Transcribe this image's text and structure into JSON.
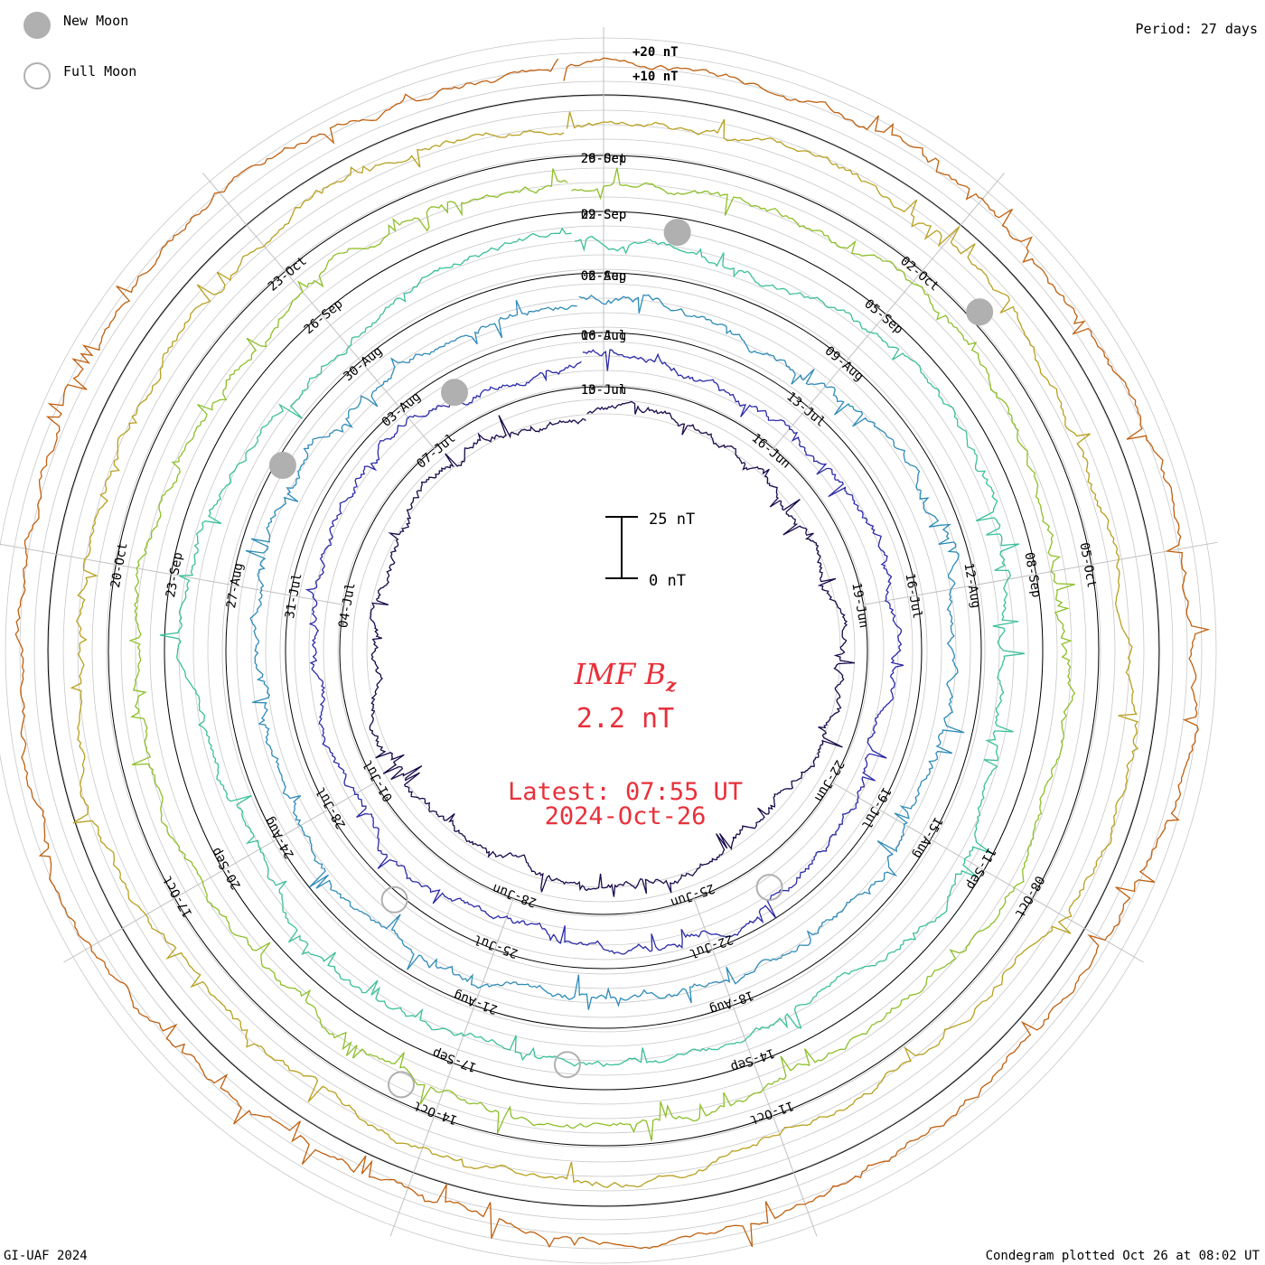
{
  "chart_data": {
    "type": "condegram",
    "title": "IMF B",
    "title_subscript": "z",
    "current_value": "2.2 nT",
    "latest_label": "Latest: 07:55 UT",
    "latest_date": "2024-Oct-26",
    "period_label": "Period: 27 days",
    "footer_left": "GI-UAF 2024",
    "footer_right": "Condegram plotted Oct 26 at 08:02 UT",
    "legend": [
      {
        "name": "New Moon",
        "symbol": "filled-circle",
        "color": "#b0b0b0"
      },
      {
        "name": "Full Moon",
        "symbol": "open-circle",
        "color": "#b0b0b0"
      }
    ],
    "scale_bar": {
      "top_label": "25 nT",
      "bottom_label": "0 nT"
    },
    "ring_scale_labels": [
      "+20 nT",
      "+10 nT"
    ],
    "rotations": [
      {
        "name": "rotation-1",
        "color": "#1a0a4a",
        "date_labels": [
          "13-Jun",
          "16-Jun",
          "19-Jun",
          "22-Jun",
          "25-Jun",
          "28-Jun",
          "01-Jul",
          "04-Jul",
          "07-Jul",
          "10-Jul"
        ]
      },
      {
        "name": "rotation-2",
        "color": "#2b2aa8",
        "date_labels": [
          "10-Jul",
          "13-Jul",
          "16-Jul",
          "19-Jul",
          "22-Jul",
          "25-Jul",
          "28-Jul",
          "31-Jul",
          "03-Aug",
          "06-Aug"
        ]
      },
      {
        "name": "rotation-3",
        "color": "#2f8bb8",
        "date_labels": [
          "06-Aug",
          "09-Aug",
          "12-Aug",
          "15-Aug",
          "18-Aug",
          "21-Aug",
          "24-Aug",
          "27-Aug",
          "30-Aug",
          "02-Sep"
        ]
      },
      {
        "name": "rotation-4",
        "color": "#3bbf9a",
        "date_labels": [
          "02-Sep",
          "05-Sep",
          "08-Sep",
          "11-Sep",
          "14-Sep",
          "17-Sep",
          "20-Sep",
          "23-Sep",
          "26-Sep",
          "29-Sep"
        ]
      },
      {
        "name": "rotation-5",
        "color": "#8dbf2a",
        "date_labels": [
          "29-Sep",
          "02-Oct",
          "05-Oct",
          "08-Oct",
          "11-Oct",
          "14-Oct",
          "17-Oct",
          "20-Oct",
          "23-Oct",
          "26-Oct"
        ]
      },
      {
        "name": "rotation-6",
        "color": "#b8a020",
        "date_labels": []
      },
      {
        "name": "rotation-7",
        "color": "#c06010",
        "date_labels": []
      }
    ]
  }
}
